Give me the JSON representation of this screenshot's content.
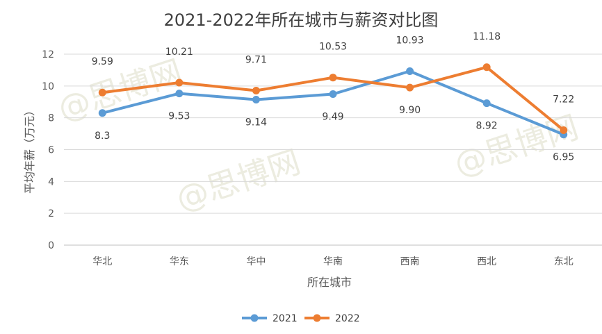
{
  "chart_data": {
    "type": "line",
    "title": "2021-2022年所在城市与薪资对比图",
    "xlabel": "所在城市",
    "ylabel": "平均年薪（万元）",
    "categories": [
      "华北",
      "华东",
      "华中",
      "华南",
      "西南",
      "西北",
      "东北"
    ],
    "ylim": [
      0,
      12
    ],
    "yticks": [
      "0",
      "2",
      "4",
      "6",
      "8",
      "10",
      "12"
    ],
    "grid": true,
    "legend_position": "bottom",
    "series": [
      {
        "name": "2021",
        "color": "#5B9BD5",
        "values": [
          8.3,
          9.53,
          9.14,
          9.49,
          10.93,
          8.92,
          6.95
        ],
        "labels": [
          "8.3",
          "9.53",
          "9.14",
          "9.49",
          "10.93",
          "8.92",
          "6.95"
        ]
      },
      {
        "name": "2022",
        "color": "#ED7D31",
        "values": [
          9.59,
          10.21,
          9.71,
          10.53,
          9.9,
          11.18,
          7.22
        ],
        "labels": [
          "9.59",
          "10.21",
          "9.71",
          "10.53",
          "9.90",
          "11.18",
          "7.22"
        ]
      }
    ]
  },
  "watermark": {
    "text": "@思博网"
  }
}
